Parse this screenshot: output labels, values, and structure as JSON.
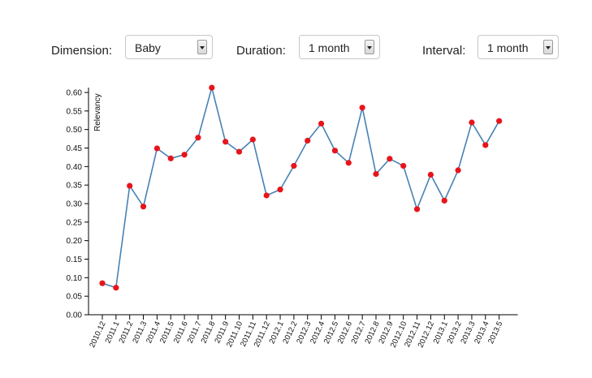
{
  "controls": {
    "dimension": {
      "label": "Dimension:",
      "value": "Baby"
    },
    "duration": {
      "label": "Duration:",
      "value": "1 month"
    },
    "interval": {
      "label": "Interval:",
      "value": "1 month"
    }
  },
  "chart_data": {
    "type": "line",
    "title": "",
    "xlabel": "",
    "ylabel": "Relevancy",
    "ylim": [
      0,
      0.6
    ],
    "yticks": [
      "0.00",
      "0.05",
      "0.10",
      "0.15",
      "0.20",
      "0.25",
      "0.30",
      "0.35",
      "0.40",
      "0.45",
      "0.50",
      "0.55",
      "0.60"
    ],
    "grid": false,
    "line_color": "#4682b4",
    "point_color": "#e8141c",
    "categories": [
      "2010.12",
      "2011.1",
      "2011.2",
      "2011.3",
      "2011.4",
      "2011.5",
      "2011.6",
      "2011.7",
      "2011.8",
      "2011.9",
      "2011.10",
      "2011.11",
      "2011.12",
      "2012.1",
      "2012.2",
      "2012.3",
      "2012.4",
      "2012.5",
      "2012.6",
      "2012.7",
      "2012.8",
      "2012.9",
      "2012.10",
      "2012.11",
      "2012.12",
      "2013.1",
      "2013.2",
      "2013.3",
      "2013.4",
      "2013.5"
    ],
    "values": [
      0.085,
      0.073,
      0.348,
      0.292,
      0.449,
      0.422,
      0.432,
      0.478,
      0.613,
      0.467,
      0.44,
      0.473,
      0.322,
      0.338,
      0.402,
      0.47,
      0.516,
      0.443,
      0.41,
      0.559,
      0.38,
      0.421,
      0.402,
      0.285,
      0.378,
      0.308,
      0.39,
      0.519,
      0.458,
      0.523
    ]
  }
}
